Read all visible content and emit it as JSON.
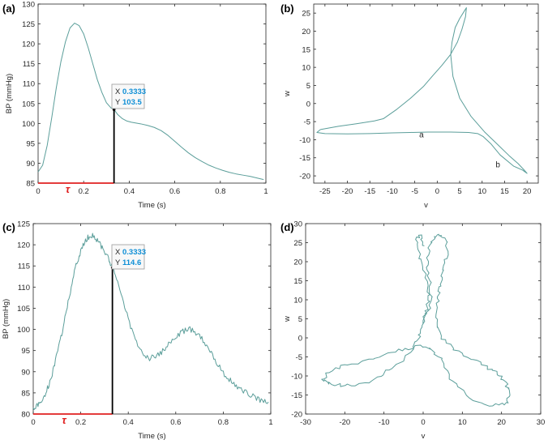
{
  "colors": {
    "curve": "#5b9e9a",
    "tau": "#e02020",
    "marker": "#000000",
    "axis": "#262626",
    "datatip_value": "#0f8fd6",
    "datatip_border": "#9a9a9a",
    "datatip_bg": "#f8f8f8"
  },
  "chart_data": [
    {
      "panel": "(a)",
      "type": "line",
      "xlabel": "Time (s)",
      "ylabel": "BP (mmHg)",
      "xlim": [
        0,
        1
      ],
      "ylim": [
        85,
        130
      ],
      "xticks": [
        0,
        0.2,
        0.4,
        0.6,
        0.8,
        1
      ],
      "xtick_labels": [
        "0",
        "0.2",
        "0.4",
        "0.6",
        "0.8",
        "1"
      ],
      "yticks": [
        85,
        90,
        95,
        100,
        105,
        110,
        115,
        120,
        125,
        130
      ],
      "ytick_labels": [
        "85",
        "90",
        "95",
        "100",
        "105",
        "110",
        "115",
        "120",
        "125",
        "130"
      ],
      "noise": 0,
      "series": [
        {
          "name": "BP",
          "x": [
            0,
            0.02,
            0.04,
            0.06,
            0.08,
            0.1,
            0.12,
            0.14,
            0.16,
            0.18,
            0.2,
            0.22,
            0.24,
            0.26,
            0.28,
            0.3,
            0.32,
            0.3333,
            0.35,
            0.37,
            0.39,
            0.41,
            0.43,
            0.45,
            0.48,
            0.51,
            0.54,
            0.57,
            0.6,
            0.63,
            0.66,
            0.69,
            0.72,
            0.75,
            0.78,
            0.81,
            0.84,
            0.87,
            0.9,
            0.93,
            0.96,
            0.99
          ],
          "y": [
            87.8,
            89.5,
            94.5,
            101.5,
            109,
            115.5,
            120.5,
            124,
            125.2,
            124.6,
            122.5,
            119,
            115,
            111,
            107.8,
            105.2,
            103.9,
            103.5,
            102.2,
            101.2,
            100.6,
            100.3,
            100.1,
            99.9,
            99.5,
            99.0,
            98.2,
            97.0,
            95.5,
            94.0,
            92.6,
            91.4,
            90.4,
            89.5,
            88.8,
            88.2,
            87.7,
            87.3,
            87.0,
            86.7,
            86.3,
            85.9
          ]
        }
      ],
      "tau": {
        "label": "τ",
        "x_start": 0,
        "x_end": 0.3333
      },
      "datatip": {
        "x_label": "X",
        "x_value": "0.3333",
        "y_label": "Y",
        "y_value": "103.5",
        "x": 0.3333,
        "y": 103.5
      }
    },
    {
      "panel": "(b)",
      "type": "line",
      "xlabel": "v",
      "ylabel": "w",
      "xlim": [
        -27.5,
        22.5
      ],
      "ylim": [
        -22,
        27.5
      ],
      "xticks": [
        -25,
        -20,
        -15,
        -10,
        -5,
        0,
        5,
        10,
        15,
        20
      ],
      "xtick_labels": [
        "-25",
        "-20",
        "-15",
        "-10",
        "-5",
        "0",
        "5",
        "10",
        "15",
        "20"
      ],
      "yticks": [
        -20,
        -15,
        -10,
        -5,
        0,
        5,
        10,
        15,
        20,
        25
      ],
      "ytick_labels": [
        "-20",
        "-15",
        "-10",
        "-5",
        "0",
        "5",
        "10",
        "15",
        "20",
        "25"
      ],
      "noise": 0,
      "series": [
        {
          "name": "trajectory",
          "x": [
            -26,
            -22,
            -18,
            -14,
            -12,
            -9,
            -6,
            -3,
            -1,
            1,
            3,
            4.5,
            5.5,
            6.3,
            6.5,
            6,
            5,
            4,
            3.3,
            3,
            3.5,
            5,
            7.5,
            10.5,
            13.5,
            16,
            18,
            19.3,
            20,
            19,
            17,
            14,
            12,
            10.2,
            9,
            7,
            3,
            -2,
            -6,
            -10,
            -15,
            -20,
            -25,
            -26.8,
            -26
          ],
          "y": [
            -7.2,
            -6.3,
            -5.6,
            -4.8,
            -4.2,
            -1.6,
            1.4,
            4.8,
            7.7,
            10.5,
            13.6,
            17,
            20.5,
            24,
            26.5,
            25.5,
            23.5,
            21,
            17,
            13.5,
            7.5,
            1.5,
            -3.5,
            -7.8,
            -11.4,
            -14.4,
            -16.6,
            -18.3,
            -19.3,
            -18.4,
            -17.3,
            -14.2,
            -11.2,
            -9.1,
            -8.3,
            -8.0,
            -7.9,
            -7.9,
            -8.0,
            -8.1,
            -8.3,
            -8.4,
            -8.3,
            -8.0,
            -7.2
          ]
        }
      ],
      "annotations": [
        {
          "text": "a",
          "x": -3.5,
          "y": -9.3
        },
        {
          "text": "b",
          "x": 13.5,
          "y": -17.6
        }
      ]
    },
    {
      "panel": "(c)",
      "type": "line",
      "xlabel": "Time (s)",
      "ylabel": "BP (mmHg)",
      "xlim": [
        0,
        1
      ],
      "ylim": [
        80,
        125
      ],
      "xticks": [
        0,
        0.2,
        0.4,
        0.6,
        0.8,
        1
      ],
      "xtick_labels": [
        "0",
        "0.2",
        "0.4",
        "0.6",
        "0.8",
        "1"
      ],
      "yticks": [
        80,
        85,
        90,
        95,
        100,
        105,
        110,
        115,
        120,
        125
      ],
      "ytick_labels": [
        "80",
        "85",
        "90",
        "95",
        "100",
        "105",
        "110",
        "115",
        "120",
        "125"
      ],
      "noise": 0.7,
      "series": [
        {
          "name": "BP",
          "x": [
            0,
            0.02,
            0.04,
            0.06,
            0.08,
            0.1,
            0.12,
            0.14,
            0.16,
            0.18,
            0.2,
            0.22,
            0.24,
            0.26,
            0.28,
            0.3,
            0.32,
            0.3333,
            0.36,
            0.39,
            0.42,
            0.45,
            0.48,
            0.51,
            0.54,
            0.57,
            0.6,
            0.63,
            0.66,
            0.69,
            0.72,
            0.75,
            0.78,
            0.81,
            0.84,
            0.87,
            0.9,
            0.93,
            0.96,
            0.99
          ],
          "y": [
            81.5,
            82,
            83.5,
            86,
            89.5,
            94,
            99,
            104.5,
            110,
            115,
            118.5,
            121,
            122.3,
            121.8,
            120.3,
            118.5,
            116.2,
            114.6,
            110.5,
            104.5,
            99,
            95,
            93.2,
            93.3,
            94.5,
            96.5,
            98.3,
            99.5,
            100,
            99,
            97.2,
            94.5,
            91.5,
            89,
            87.3,
            86,
            85,
            84,
            83.2,
            82.6
          ]
        }
      ],
      "tau": {
        "label": "τ",
        "x_start": 0,
        "x_end": 0.3333
      },
      "datatip": {
        "x_label": "X",
        "x_value": "0.3333",
        "y_label": "Y",
        "y_value": "114.6",
        "x": 0.3333,
        "y": 114.6
      }
    },
    {
      "panel": "(d)",
      "type": "line",
      "xlabel": "v",
      "ylabel": "w",
      "xlim": [
        -30,
        30
      ],
      "ylim": [
        -20,
        30
      ],
      "xticks": [
        -30,
        -20,
        -10,
        0,
        10,
        20,
        30
      ],
      "xtick_labels": [
        "-30",
        "-20",
        "-10",
        "0",
        "10",
        "20",
        "30"
      ],
      "yticks": [
        -20,
        -15,
        -10,
        -5,
        0,
        5,
        10,
        15,
        20,
        25,
        30
      ],
      "ytick_labels": [
        "-20",
        "-15",
        "-10",
        "-5",
        "0",
        "5",
        "10",
        "15",
        "20",
        "25",
        "30"
      ],
      "noise": 0.45,
      "series": [
        {
          "name": "trajectory",
          "x": [
            0,
            1.5,
            2,
            1.5,
            1,
            1.5,
            3,
            4.5,
            5.8,
            6.3,
            5.5,
            4.5,
            4,
            3.5,
            3.5,
            5,
            8,
            12,
            16,
            19,
            21,
            22,
            21.5,
            19,
            15,
            10,
            7,
            5,
            2,
            -1,
            -5,
            -10,
            -15,
            -20,
            -24,
            -25.5,
            -24,
            -20,
            -15,
            -10,
            -6,
            -3,
            -1.5,
            -0.5,
            0.5,
            1.5,
            1,
            0,
            -1,
            -1.5,
            -0.5,
            0
          ],
          "y": [
            4,
            8,
            12,
            16,
            20,
            24,
            26.5,
            27,
            25.5,
            22.5,
            19,
            15,
            12,
            8,
            4,
            0,
            -3,
            -5.5,
            -7.5,
            -9.5,
            -11.5,
            -14,
            -17,
            -17.8,
            -17.5,
            -14,
            -10.5,
            -6,
            -2.8,
            -2.3,
            -3,
            -4.5,
            -6,
            -7.3,
            -8.8,
            -11,
            -12,
            -12.5,
            -12,
            -9.5,
            -6.5,
            -3.5,
            -1,
            2,
            6,
            10,
            14,
            18,
            22,
            26,
            27,
            24
          ]
        }
      ]
    }
  ]
}
